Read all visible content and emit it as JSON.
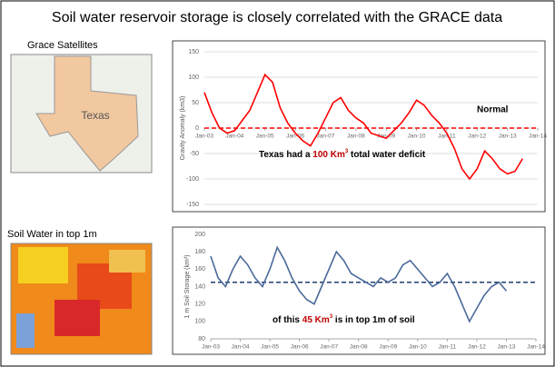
{
  "title": "Soil water reservoir storage is closely correlated with the GRACE data",
  "panels": [
    {
      "label": "Grace Satellites",
      "map_label": "Texas"
    },
    {
      "label": "Soil Water in top 1m"
    }
  ],
  "chart_data": [
    {
      "type": "line",
      "ylabel": "Gravity Anomaly (km3)",
      "x": [
        2003,
        2003.25,
        2003.5,
        2003.75,
        2004,
        2004.25,
        2004.5,
        2004.75,
        2005,
        2005.25,
        2005.5,
        2005.75,
        2006,
        2006.25,
        2006.5,
        2006.75,
        2007,
        2007.25,
        2007.5,
        2007.75,
        2008,
        2008.25,
        2008.5,
        2008.75,
        2009,
        2009.25,
        2009.5,
        2009.75,
        2010,
        2010.25,
        2010.5,
        2010.75,
        2011,
        2011.25,
        2011.5,
        2011.75,
        2012,
        2012.25,
        2012.5,
        2012.75,
        2013,
        2013.25,
        2013.5
      ],
      "series": [
        {
          "color": "#ff0000",
          "values": [
            70,
            30,
            0,
            -10,
            -5,
            15,
            35,
            70,
            105,
            90,
            40,
            10,
            -10,
            -25,
            -35,
            -10,
            20,
            50,
            60,
            35,
            20,
            10,
            -10,
            -15,
            -20,
            -5,
            10,
            30,
            55,
            45,
            25,
            10,
            -10,
            -40,
            -80,
            -100,
            -80,
            -45,
            -60,
            -80,
            -90,
            -85,
            -60
          ]
        }
      ],
      "xlim": [
        2003,
        2014
      ],
      "xticks": [
        {
          "value": 2003,
          "label": "Jan-03"
        },
        {
          "value": 2004,
          "label": "Jan-04"
        },
        {
          "value": 2005,
          "label": "Jan-05"
        },
        {
          "value": 2006,
          "label": "Jan-06"
        },
        {
          "value": 2007,
          "label": "Jan-07"
        },
        {
          "value": 2008,
          "label": "Jan-08"
        },
        {
          "value": 2009,
          "label": "Jan-09"
        },
        {
          "value": 2010,
          "label": "Jan-10"
        },
        {
          "value": 2011,
          "label": "Jan-11"
        },
        {
          "value": 2012,
          "label": "Jan-12"
        },
        {
          "value": 2013,
          "label": "Jan-13"
        },
        {
          "value": 2014,
          "label": "Jan-14"
        }
      ],
      "ylim": [
        -150,
        150
      ],
      "yticks": [
        -150,
        -100,
        -50,
        0,
        50,
        100,
        150
      ],
      "grid": true,
      "reference_line": {
        "value": 0,
        "color": "#ff0000",
        "label": "Normal"
      },
      "annotation": [
        {
          "text": "Texas had a "
        },
        {
          "text": "100 Km",
          "color": "#c00000"
        },
        {
          "text": "3",
          "color": "#c00000",
          "sup": true
        },
        {
          "text": " total water deficit"
        }
      ]
    },
    {
      "type": "line",
      "ylabel": "1 m Soil Storage (km³)",
      "x": [
        2003,
        2003.25,
        2003.5,
        2003.75,
        2004,
        2004.25,
        2004.5,
        2004.75,
        2005,
        2005.25,
        2005.5,
        2005.75,
        2006,
        2006.25,
        2006.5,
        2006.75,
        2007,
        2007.25,
        2007.5,
        2007.75,
        2008,
        2008.25,
        2008.5,
        2008.75,
        2009,
        2009.25,
        2009.5,
        2009.75,
        2010,
        2010.25,
        2010.5,
        2010.75,
        2011,
        2011.25,
        2011.5,
        2011.75,
        2012,
        2012.25,
        2012.5,
        2012.75,
        2013
      ],
      "series": [
        {
          "color": "#4a6a9a",
          "values": [
            175,
            150,
            140,
            160,
            175,
            165,
            150,
            140,
            160,
            185,
            170,
            150,
            135,
            125,
            120,
            140,
            160,
            180,
            170,
            155,
            150,
            145,
            140,
            150,
            145,
            150,
            165,
            170,
            160,
            150,
            140,
            145,
            155,
            140,
            120,
            100,
            115,
            130,
            140,
            145,
            135
          ]
        }
      ],
      "xlim": [
        2003,
        2014
      ],
      "xticks": [
        {
          "value": 2003,
          "label": "Jan-03"
        },
        {
          "value": 2004,
          "label": "Jan-04"
        },
        {
          "value": 2005,
          "label": "Jan-05"
        },
        {
          "value": 2006,
          "label": "Jan-06"
        },
        {
          "value": 2007,
          "label": "Jan-07"
        },
        {
          "value": 2008,
          "label": "Jan-08"
        },
        {
          "value": 2009,
          "label": "Jan-09"
        },
        {
          "value": 2010,
          "label": "Jan-10"
        },
        {
          "value": 2011,
          "label": "Jan-11"
        },
        {
          "value": 2012,
          "label": "Jan-12"
        },
        {
          "value": 2013,
          "label": "Jan-13"
        },
        {
          "value": 2014,
          "label": "Jan-14"
        }
      ],
      "ylim": [
        80,
        200
      ],
      "yticks": [
        80,
        100,
        120,
        140,
        160,
        180,
        200
      ],
      "grid": false,
      "reference_line": {
        "value": 145,
        "color": "#1f3d6b"
      },
      "annotation": [
        {
          "text": "of this "
        },
        {
          "text": "45 Km",
          "color": "#c00000"
        },
        {
          "text": "3",
          "color": "#c00000",
          "sup": true
        },
        {
          "text": " is in top 1m of soil"
        }
      ]
    }
  ]
}
